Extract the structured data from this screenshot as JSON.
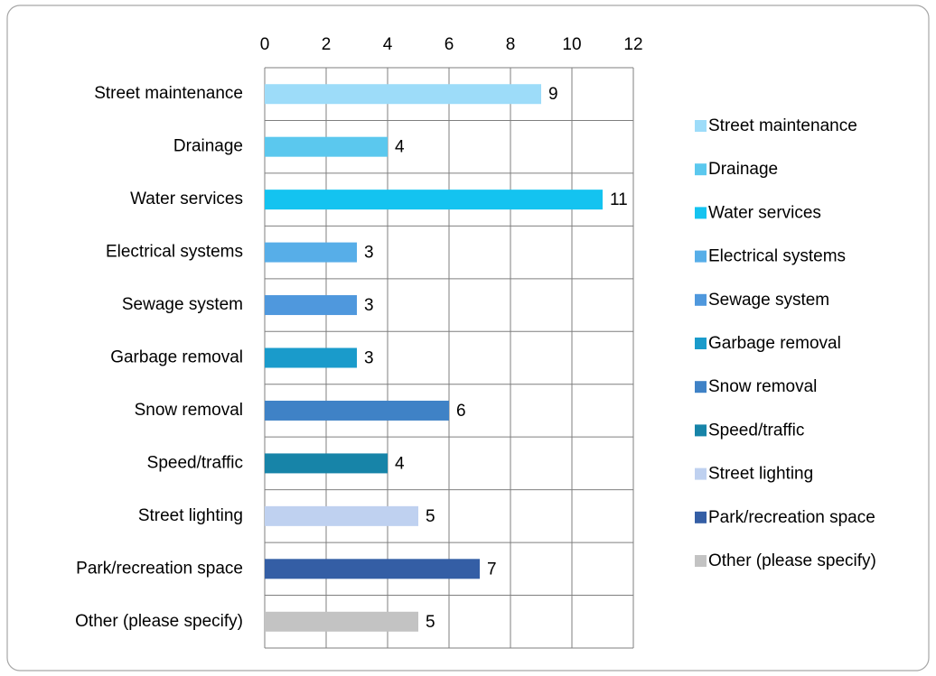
{
  "chart_data": {
    "type": "barh",
    "categories": [
      "Street maintenance",
      "Drainage",
      "Water services",
      "Electrical systems",
      "Sewage system",
      "Garbage removal",
      "Snow removal",
      "Speed/traffic",
      "Street lighting",
      "Park/recreation space",
      "Other (please specify)"
    ],
    "values": [
      9,
      4,
      11,
      3,
      3,
      3,
      6,
      4,
      5,
      7,
      5
    ],
    "colors": [
      "#9ddcf9",
      "#5bc8ee",
      "#14c3f0",
      "#57aee8",
      "#4f98dd",
      "#1a9bcb",
      "#3f82c6",
      "#1784a8",
      "#bfd1f0",
      "#345ea5",
      "#c3c3c3"
    ],
    "xlim": [
      0,
      12
    ],
    "xticks": [
      0,
      2,
      4,
      6,
      8,
      10,
      12
    ],
    "grid": true,
    "legend": "right"
  }
}
